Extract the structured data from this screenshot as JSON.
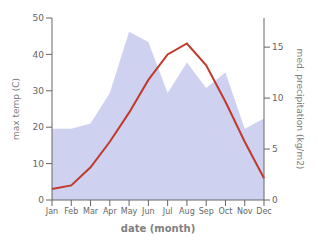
{
  "chart_data": {
    "type": "line",
    "categories": [
      "Jan",
      "Feb",
      "Mar",
      "Apr",
      "May",
      "Jun",
      "Jul",
      "Aug",
      "Sep",
      "Oct",
      "Nov",
      "Dec"
    ],
    "series": [
      {
        "type": "area",
        "axis": "y2",
        "color": "#b3b9e8",
        "values": [
          7,
          7,
          7.5,
          10.5,
          16.5,
          15.5,
          10.5,
          13.5,
          11,
          12.5,
          7,
          8
        ]
      },
      {
        "type": "line",
        "color": "#c0392b",
        "values": [
          3,
          4,
          9,
          16,
          24,
          33,
          40,
          43,
          37,
          27,
          16,
          6
        ]
      }
    ],
    "xlabel": "date (month)",
    "ylabel": "max temp (C)",
    "y2label": "med. precipitation (kg/m2)",
    "ylim": [
      0,
      50
    ],
    "yticks": [
      0,
      10,
      20,
      30,
      40,
      50
    ],
    "y2lim": [
      0,
      17.86
    ],
    "y2ticks": [
      0,
      5,
      10,
      15
    ],
    "grid": false
  }
}
